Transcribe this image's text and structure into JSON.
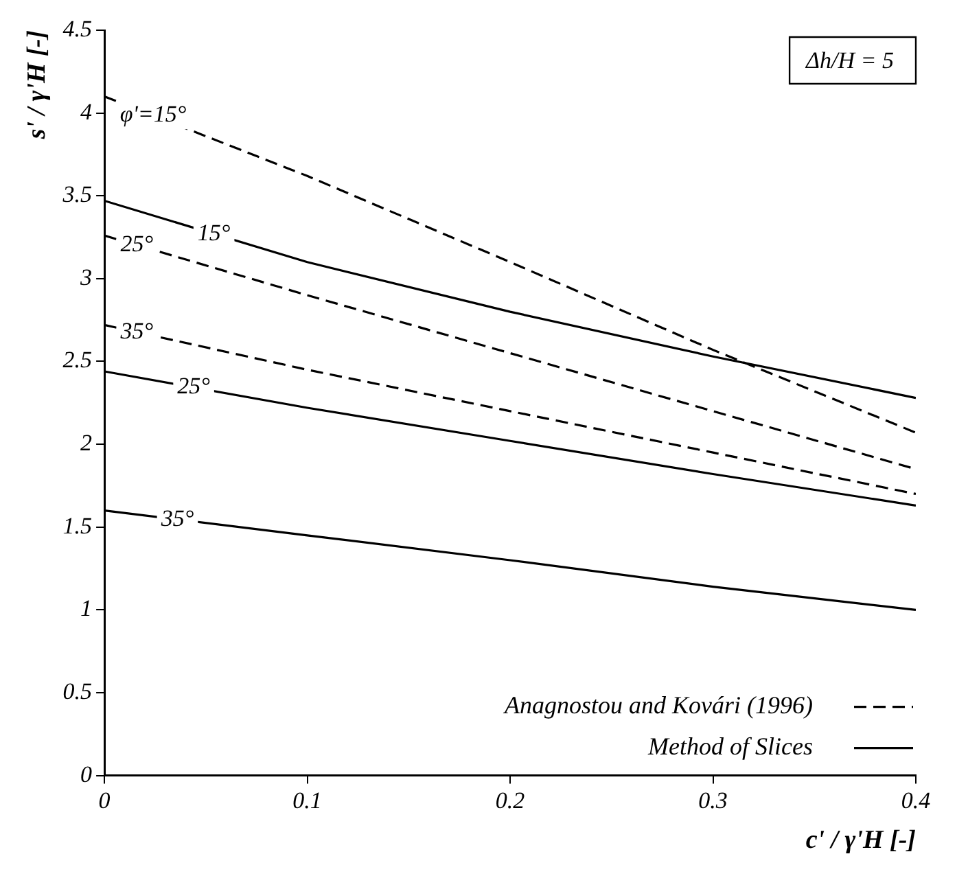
{
  "chart_data": {
    "type": "line",
    "xlabel": "c' / γ'H [-]",
    "ylabel": "s' / γ'H [-]",
    "x": [
      0,
      0.1,
      0.2,
      0.3,
      0.4
    ],
    "series": [
      {
        "name": "φ'=15°",
        "color": "#000000",
        "line_style": "dashed",
        "values": [
          4.1,
          3.62,
          3.1,
          2.57,
          2.07
        ]
      },
      {
        "name": "25°",
        "color": "#000000",
        "line_style": "dashed",
        "values": [
          3.26,
          2.9,
          2.55,
          2.2,
          1.85
        ]
      },
      {
        "name": "35°",
        "color": "#000000",
        "line_style": "dashed",
        "values": [
          2.72,
          2.45,
          2.2,
          1.95,
          1.7
        ]
      },
      {
        "name": "15°",
        "color": "#000000",
        "line_style": "solid",
        "values": [
          3.47,
          3.1,
          2.8,
          2.53,
          2.28
        ]
      },
      {
        "name": "25°",
        "color": "#000000",
        "line_style": "solid",
        "values": [
          2.44,
          2.22,
          2.02,
          1.82,
          1.63
        ]
      },
      {
        "name": "35°",
        "color": "#000000",
        "line_style": "solid",
        "values": [
          1.6,
          1.45,
          1.3,
          1.14,
          1.0
        ]
      }
    ],
    "xlim": [
      0,
      0.4
    ],
    "xticks": [
      0,
      0.1,
      0.2,
      0.3,
      0.4
    ],
    "ylim": [
      0,
      4.5
    ],
    "yticks": [
      0,
      0.5,
      1,
      1.5,
      2,
      2.5,
      3,
      3.5,
      4,
      4.5
    ],
    "grid": false,
    "legend": false,
    "marker": "none",
    "annotations": [
      "Δh/H = 5",
      "Anagnostou and Kovári (1996)",
      "Method of Slices"
    ]
  }
}
